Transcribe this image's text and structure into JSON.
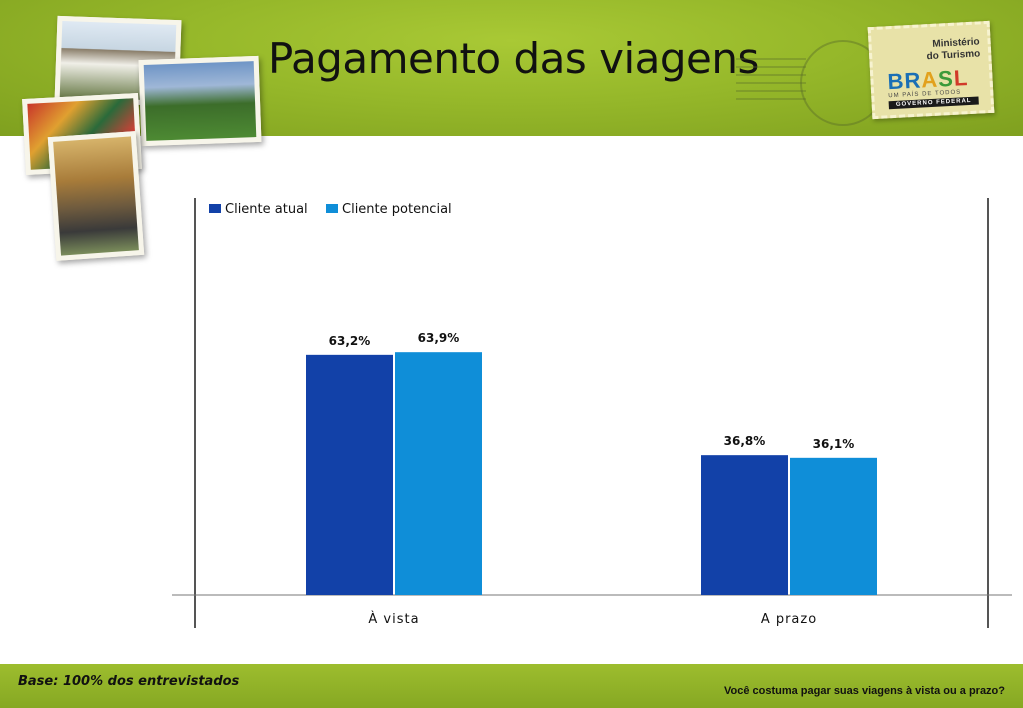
{
  "slide": {
    "title": "Pagamento das viagens",
    "base_note": "Base: 100% dos entrevistados",
    "question": "Você costuma pagar suas viagens à vista ou a prazo?"
  },
  "stamp": {
    "title_line1": "Ministério",
    "title_line2": "do Turismo",
    "brand_letters": [
      "BR",
      "A",
      "S",
      "L"
    ],
    "tagline": "UM PAÍS DE TODOS",
    "government": "GOVERNO FEDERAL"
  },
  "chart_data": {
    "type": "bar",
    "categories": [
      "À vista",
      "A prazo"
    ],
    "series": [
      {
        "name": "Cliente atual",
        "values": [
          63.2,
          36.8
        ],
        "labels": [
          "63,2%",
          "36,8%"
        ],
        "color": "#1241a8"
      },
      {
        "name": "Cliente potencial",
        "values": [
          63.9,
          36.1
        ],
        "labels": [
          "63,9%",
          "36,1%"
        ],
        "color": "#0f8ed8"
      }
    ],
    "ylim": [
      0,
      100
    ],
    "legend_position": "top-left",
    "grid": false
  }
}
